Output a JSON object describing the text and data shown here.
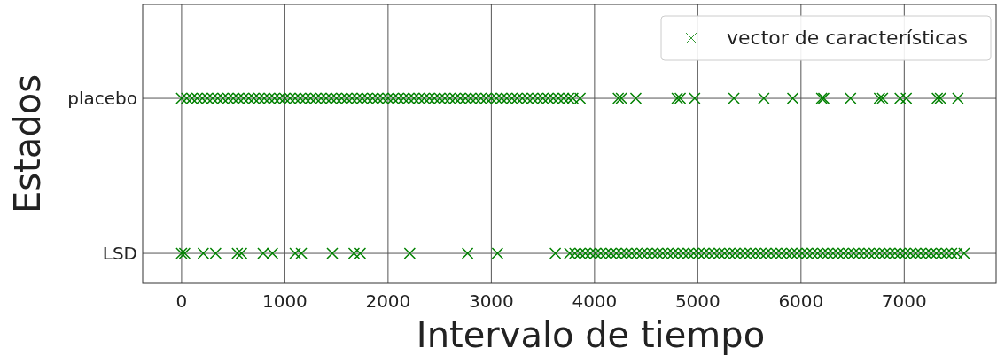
{
  "chart_data": {
    "type": "scatter",
    "orientation": "horizontal",
    "xlabel": "Intervalo de tiempo",
    "ylabel": "Estados",
    "categories": [
      "placebo",
      "LSD"
    ],
    "xlim": [
      -377,
      7890
    ],
    "xticks": [
      0,
      1000,
      2000,
      3000,
      4000,
      5000,
      6000,
      7000
    ],
    "grid": true,
    "legend": "top right",
    "marker": "cross",
    "series": [
      {
        "name": "vector de características",
        "color": "#008000",
        "values": [
          0,
          50,
          100,
          150,
          200,
          250,
          300,
          350,
          400,
          450,
          500,
          550,
          600,
          650,
          700,
          750,
          800,
          850,
          900,
          950,
          1000,
          1050,
          1100,
          1150,
          1200,
          1250,
          1300,
          1350,
          1400,
          1450,
          1500,
          1550,
          1600,
          1650,
          1700,
          1750,
          1800,
          1850,
          1900,
          1950,
          2000,
          2050,
          2100,
          2150,
          2200,
          2250,
          2300,
          2350,
          2400,
          2450,
          2500,
          2550,
          2600,
          2650,
          2700,
          2750,
          2800,
          2850,
          2900,
          2950,
          3000,
          3050,
          3100,
          3150,
          3200,
          3250,
          3300,
          3350,
          3400,
          3450,
          3500,
          3550,
          3600,
          3650,
          3700,
          3750,
          3790,
          3860,
          4230,
          4260,
          4400,
          4800,
          4830,
          4970,
          5350,
          5640,
          5920,
          6200,
          6220,
          6480,
          6760,
          6790,
          6960,
          7020,
          7320,
          7350,
          7520,
          0,
          30,
          210,
          330,
          540,
          580,
          790,
          880,
          1100,
          1160,
          1460,
          1670,
          1730,
          2210,
          2770,
          3060,
          3620,
          3760,
          3810,
          3860,
          3910,
          3960,
          4010,
          4060,
          4110,
          4160,
          4210,
          4260,
          4310,
          4360,
          4410,
          4460,
          4510,
          4560,
          4610,
          4660,
          4710,
          4760,
          4810,
          4860,
          4910,
          4960,
          5010,
          5060,
          5110,
          5160,
          5210,
          5260,
          5310,
          5360,
          5410,
          5460,
          5510,
          5560,
          5610,
          5660,
          5710,
          5760,
          5810,
          5860,
          5910,
          5960,
          6010,
          6060,
          6110,
          6160,
          6210,
          6260,
          6310,
          6360,
          6410,
          6460,
          6510,
          6560,
          6610,
          6660,
          6710,
          6760,
          6810,
          6860,
          6910,
          6960,
          7010,
          7060,
          7110,
          7160,
          7210,
          7260,
          7310,
          7360,
          7410,
          7460,
          7510,
          7580
        ],
        "x": [
          "placebo",
          "placebo",
          "placebo",
          "placebo",
          "placebo",
          "placebo",
          "placebo",
          "placebo",
          "placebo",
          "placebo",
          "placebo",
          "placebo",
          "placebo",
          "placebo",
          "placebo",
          "placebo",
          "placebo",
          "placebo",
          "placebo",
          "placebo",
          "placebo",
          "placebo",
          "placebo",
          "placebo",
          "placebo",
          "placebo",
          "placebo",
          "placebo",
          "placebo",
          "placebo",
          "placebo",
          "placebo",
          "placebo",
          "placebo",
          "placebo",
          "placebo",
          "placebo",
          "placebo",
          "placebo",
          "placebo",
          "placebo",
          "placebo",
          "placebo",
          "placebo",
          "placebo",
          "placebo",
          "placebo",
          "placebo",
          "placebo",
          "placebo",
          "placebo",
          "placebo",
          "placebo",
          "placebo",
          "placebo",
          "placebo",
          "placebo",
          "placebo",
          "placebo",
          "placebo",
          "placebo",
          "placebo",
          "placebo",
          "placebo",
          "placebo",
          "placebo",
          "placebo",
          "placebo",
          "placebo",
          "placebo",
          "placebo",
          "placebo",
          "placebo",
          "placebo",
          "placebo",
          "placebo",
          "placebo",
          "placebo",
          "placebo",
          "placebo",
          "placebo",
          "placebo",
          "placebo",
          "placebo",
          "placebo",
          "placebo",
          "placebo",
          "placebo",
          "placebo",
          "placebo",
          "placebo",
          "placebo",
          "placebo",
          "placebo",
          "placebo",
          "placebo",
          "placebo",
          "LSD",
          "LSD",
          "LSD",
          "LSD",
          "LSD",
          "LSD",
          "LSD",
          "LSD",
          "LSD",
          "LSD",
          "LSD",
          "LSD",
          "LSD",
          "LSD",
          "LSD",
          "LSD",
          "LSD",
          "LSD",
          "LSD",
          "LSD",
          "LSD",
          "LSD",
          "LSD",
          "LSD",
          "LSD",
          "LSD",
          "LSD",
          "LSD",
          "LSD",
          "LSD",
          "LSD",
          "LSD",
          "LSD",
          "LSD",
          "LSD",
          "LSD",
          "LSD",
          "LSD",
          "LSD",
          "LSD",
          "LSD",
          "LSD",
          "LSD",
          "LSD",
          "LSD",
          "LSD",
          "LSD",
          "LSD",
          "LSD",
          "LSD",
          "LSD",
          "LSD",
          "LSD",
          "LSD",
          "LSD",
          "LSD",
          "LSD",
          "LSD",
          "LSD",
          "LSD",
          "LSD",
          "LSD",
          "LSD",
          "LSD",
          "LSD",
          "LSD",
          "LSD",
          "LSD",
          "LSD",
          "LSD",
          "LSD",
          "LSD",
          "LSD",
          "LSD",
          "LSD",
          "LSD",
          "LSD",
          "LSD",
          "LSD",
          "LSD",
          "LSD",
          "LSD",
          "LSD",
          "LSD",
          "LSD",
          "LSD",
          "LSD",
          "LSD",
          "LSD",
          "LSD",
          "LSD",
          "LSD",
          "LSD",
          "LSD"
        ]
      }
    ]
  }
}
